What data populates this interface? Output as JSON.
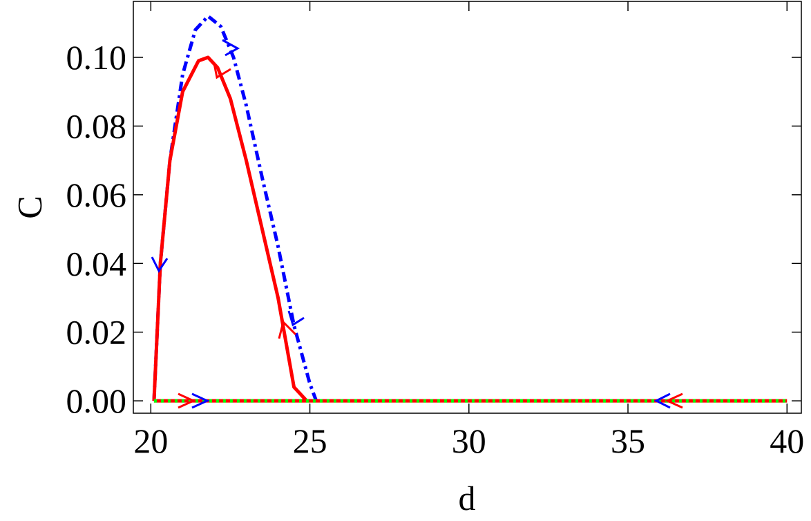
{
  "chart_data": {
    "type": "line",
    "xlabel": "d",
    "ylabel": "C",
    "xlim": [
      19.45,
      40.45
    ],
    "ylim": [
      -0.0036,
      0.1163
    ],
    "xticks": [
      20,
      25,
      30,
      35,
      40
    ],
    "yticks": [
      {
        "value": 0,
        "label": "0.00"
      },
      {
        "value": 0.02,
        "label": "0.02"
      },
      {
        "value": 0.04,
        "label": "0.04"
      },
      {
        "value": 0.06,
        "label": "0.06"
      },
      {
        "value": 0.08,
        "label": "0.08"
      },
      {
        "value": 0.1,
        "label": "0.10"
      }
    ],
    "series": [
      {
        "color": "#0000ff",
        "dash": "dashdot",
        "x": [
          20.1,
          20.3,
          20.6,
          21,
          21.4,
          21.8,
          22.2,
          22.6,
          23,
          23.5,
          24,
          24.5,
          25,
          25.2
        ],
        "values": [
          0,
          0.04,
          0.07,
          0.095,
          0.108,
          0.112,
          0.109,
          0.1,
          0.086,
          0.065,
          0.045,
          0.022,
          0.005,
          0
        ]
      },
      {
        "color": "#ff0000",
        "dash": "solid",
        "x": [
          20.1,
          20.3,
          20.6,
          21,
          21.5,
          21.8,
          22.1,
          22.5,
          23,
          23.5,
          24,
          24.5,
          24.9
        ],
        "values": [
          0,
          0.04,
          0.07,
          0.09,
          0.099,
          0.1,
          0.097,
          0.088,
          0.07,
          0.05,
          0.03,
          0.004,
          0
        ]
      },
      {
        "color": "#ff0000",
        "dash": "solid",
        "x": [
          20.1,
          40
        ],
        "values": [
          0,
          0
        ]
      },
      {
        "color": "#00ff00",
        "dash": "dotted",
        "x": [
          20.1,
          40
        ],
        "values": [
          0,
          0
        ]
      }
    ]
  }
}
